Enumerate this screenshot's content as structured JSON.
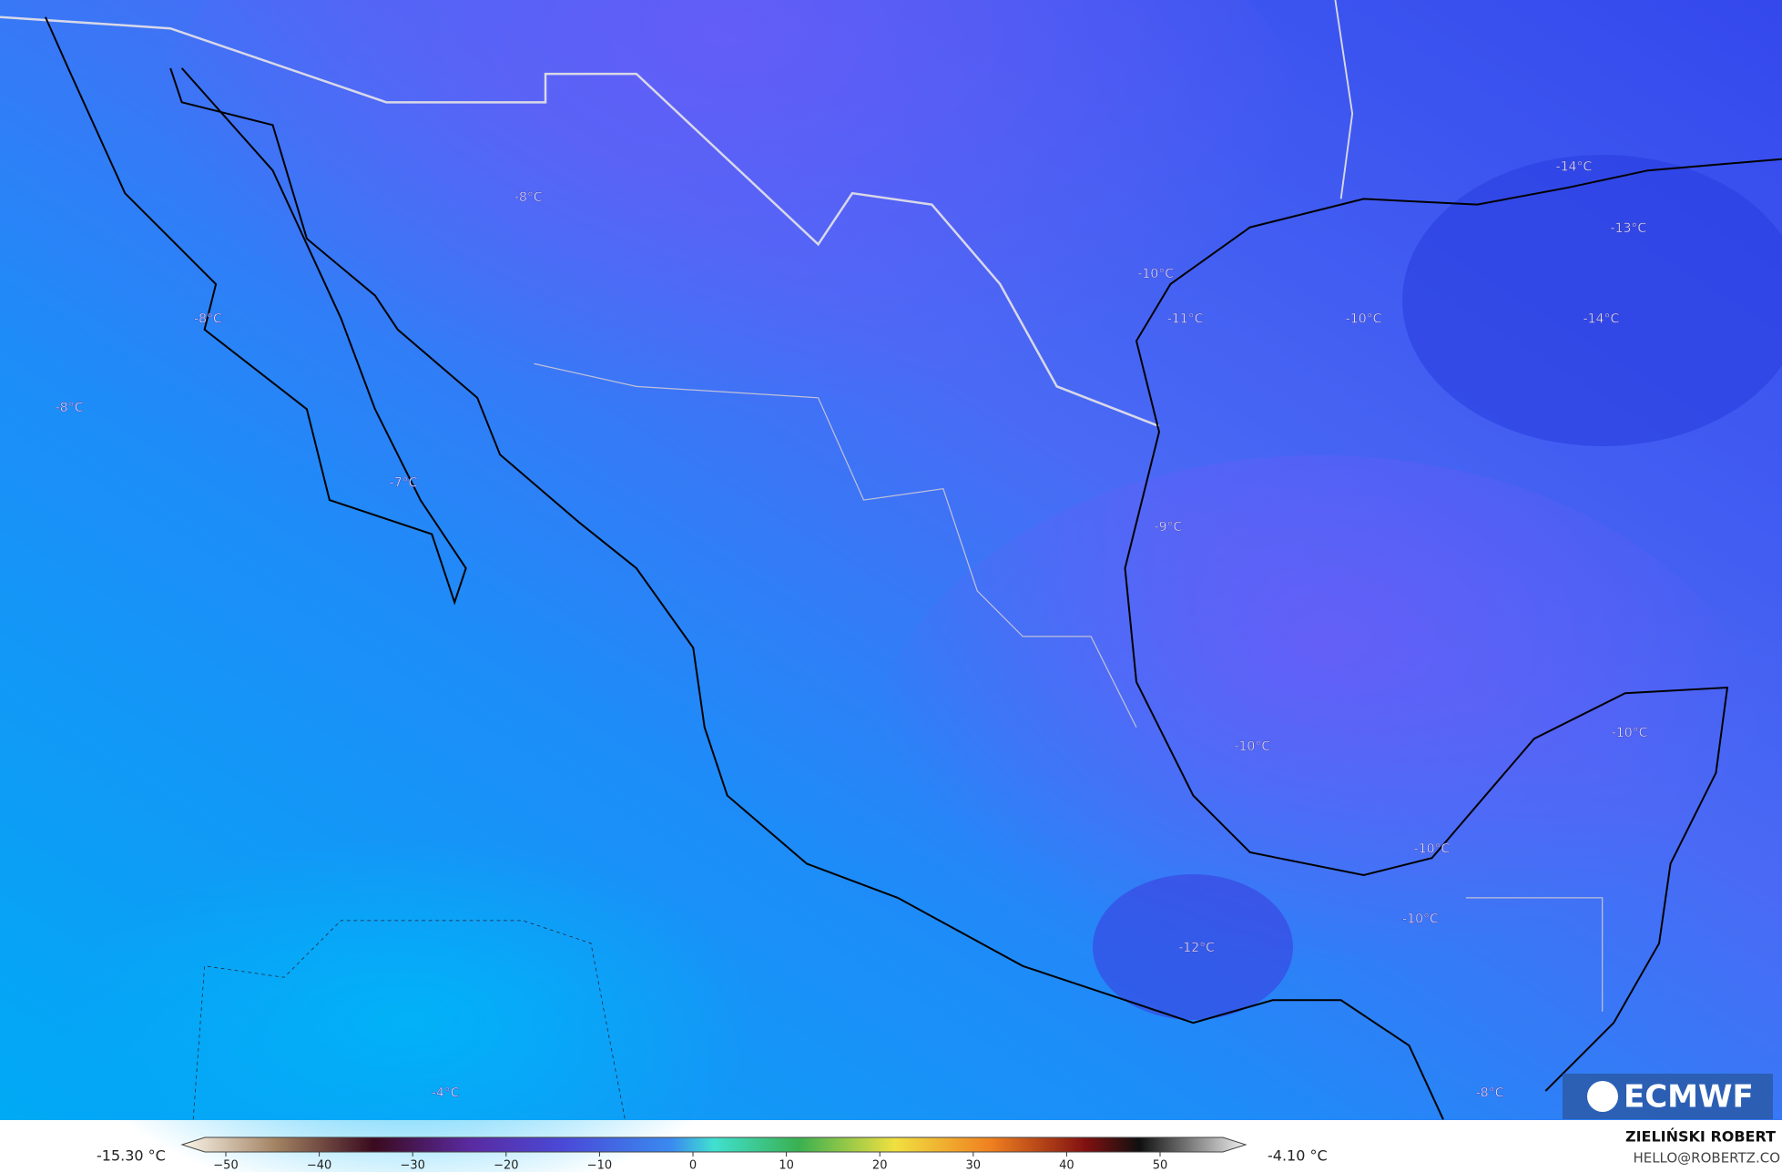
{
  "map": {
    "contour_labels": [
      "-8°C",
      "-8°C",
      "-8°C",
      "-7°C",
      "-10°C",
      "-11°C",
      "-10°C",
      "-14°C",
      "-14°C",
      "-13°C",
      "-9°C",
      "-10°C",
      "-10°C",
      "-10°C",
      "-10°C",
      "-12°C",
      "-4°C",
      "-8°C"
    ],
    "logo": "ECMWF"
  },
  "colorbar": {
    "min_label": "-15.30 °C",
    "max_label": "-4.10 °C",
    "ticks": [
      {
        "value": -50,
        "label": "−50"
      },
      {
        "value": -40,
        "label": "−40"
      },
      {
        "value": -30,
        "label": "−30"
      },
      {
        "value": -20,
        "label": "−20"
      },
      {
        "value": -10,
        "label": "−10"
      },
      0,
      10,
      20,
      30,
      40,
      50
    ]
  },
  "credit": {
    "name": "ZIELIŃSKI ROBERT",
    "email": "HELLO@ROBERTZ.CO"
  }
}
